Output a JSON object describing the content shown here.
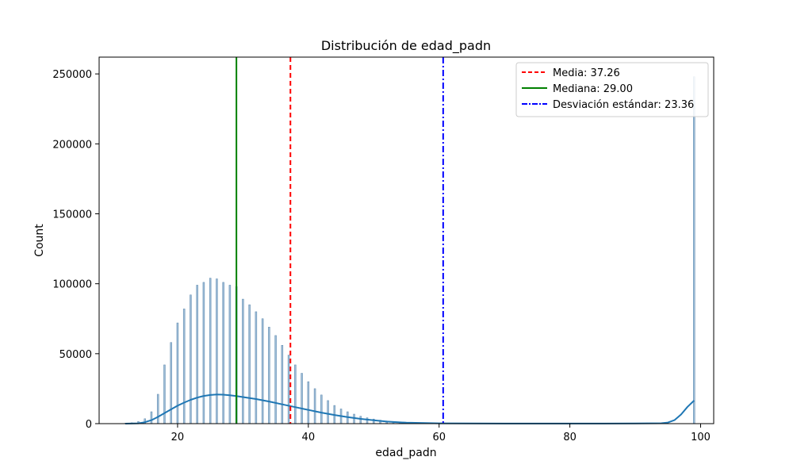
{
  "chart_data": {
    "type": "bar",
    "title": "Distribución de edad_padn",
    "xlabel": "edad_padn",
    "ylabel": "Count",
    "xlim": [
      8,
      102
    ],
    "ylim": [
      0,
      262000
    ],
    "x_ticks": [
      20,
      40,
      60,
      80,
      100
    ],
    "y_ticks": [
      0,
      50000,
      100000,
      150000,
      200000,
      250000
    ],
    "grid": false,
    "legend_position": "top-right",
    "histogram": {
      "color": "#7da7c9",
      "x": [
        12,
        13,
        14,
        15,
        16,
        17,
        18,
        19,
        20,
        21,
        22,
        23,
        24,
        25,
        26,
        27,
        28,
        29,
        30,
        31,
        32,
        33,
        34,
        35,
        36,
        37,
        38,
        39,
        40,
        41,
        42,
        43,
        44,
        45,
        46,
        47,
        48,
        49,
        50,
        51,
        52,
        53,
        54,
        55,
        56,
        57,
        58,
        59,
        60,
        61,
        62,
        63,
        64,
        65,
        66,
        67,
        68,
        69,
        70,
        99
      ],
      "counts": [
        300,
        600,
        1500,
        3500,
        8500,
        21000,
        42000,
        58000,
        72000,
        82000,
        92000,
        99000,
        101000,
        104000,
        103500,
        101000,
        99000,
        98000,
        89000,
        85000,
        80000,
        75000,
        69000,
        63000,
        56000,
        49000,
        42000,
        36000,
        30000,
        25000,
        20500,
        16500,
        13000,
        10500,
        8500,
        6800,
        5300,
        4200,
        3300,
        2500,
        1900,
        1400,
        1000,
        750,
        550,
        400,
        300,
        220,
        160,
        120,
        90,
        70,
        50,
        40,
        30,
        25,
        20,
        15,
        10,
        248000
      ]
    },
    "kde": {
      "name": "kde",
      "color": "#1f77b4",
      "x": [
        12,
        14,
        15,
        16,
        17,
        18,
        19,
        20,
        21,
        22,
        23,
        24,
        25,
        26,
        27,
        28,
        29,
        30,
        32,
        34,
        36,
        38,
        40,
        42,
        44,
        46,
        48,
        50,
        52,
        55,
        60,
        70,
        80,
        90,
        94,
        95,
        96,
        97,
        98,
        99
      ],
      "y": [
        0,
        200,
        1000,
        2500,
        4800,
        7500,
        10200,
        12800,
        15000,
        17000,
        18600,
        19800,
        20500,
        20800,
        20700,
        20300,
        19700,
        19000,
        17600,
        15800,
        13800,
        11800,
        9800,
        7900,
        6200,
        4700,
        3400,
        2400,
        1500,
        700,
        200,
        50,
        50,
        100,
        300,
        800,
        2500,
        6500,
        12000,
        16500
      ]
    },
    "reference_lines": [
      {
        "label": "Media: 37.26",
        "x": 37.26,
        "color": "#ff0000",
        "style": "dashed"
      },
      {
        "label": "Mediana: 29.00",
        "x": 29.0,
        "color": "#008000",
        "style": "solid"
      },
      {
        "label": "Desviación estándar: 23.36",
        "x": 60.62,
        "color": "#0000ff",
        "style": "dashdot"
      }
    ]
  }
}
